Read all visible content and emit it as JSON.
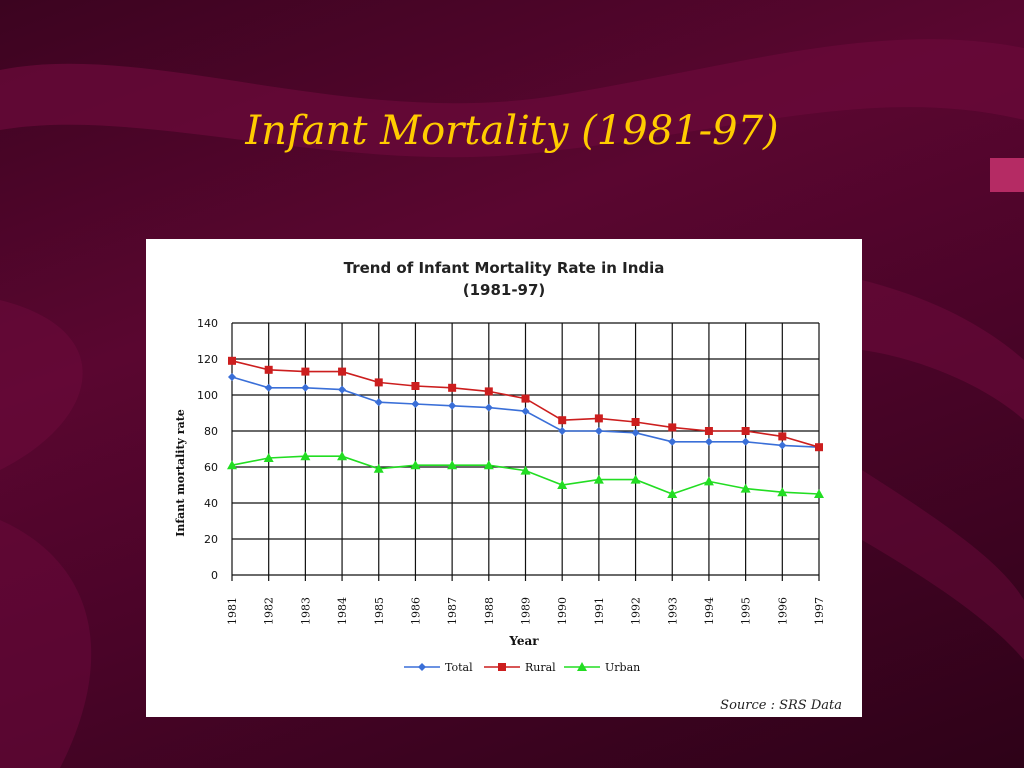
{
  "slide": {
    "title": "Infant Mortality (1981-97)"
  },
  "colors": {
    "title": "#ffcc00",
    "background": "#4a0428",
    "total": "#3a6fd8",
    "rural": "#cc1e1e",
    "urban": "#22dd22"
  },
  "chart_data": {
    "type": "line",
    "title": "Trend of Infant Mortality Rate in India",
    "subtitle": "(1981-97)",
    "xlabel": "Year",
    "ylabel": "Infant mortality rate",
    "source": "Source : SRS Data",
    "grid": true,
    "legend_position": "bottom",
    "ylim": [
      0,
      140
    ],
    "yticks": [
      0,
      20,
      40,
      60,
      80,
      100,
      120,
      140
    ],
    "categories": [
      "1981",
      "1982",
      "1983",
      "1984",
      "1985",
      "1986",
      "1987",
      "1988",
      "1989",
      "1990",
      "1991",
      "1992",
      "1993",
      "1994",
      "1995",
      "1996",
      "1997"
    ],
    "series": [
      {
        "name": "Total",
        "marker": "diamond",
        "values": [
          110,
          104,
          104,
          103,
          96,
          95,
          94,
          93,
          91,
          80,
          80,
          79,
          74,
          74,
          74,
          72,
          71
        ]
      },
      {
        "name": "Rural",
        "marker": "square",
        "values": [
          119,
          114,
          113,
          113,
          107,
          105,
          104,
          102,
          98,
          86,
          87,
          85,
          82,
          80,
          80,
          77,
          71
        ]
      },
      {
        "name": "Urban",
        "marker": "triangle",
        "values": [
          61,
          65,
          66,
          66,
          59,
          61,
          61,
          61,
          58,
          50,
          53,
          53,
          45,
          52,
          48,
          46,
          45
        ]
      }
    ]
  }
}
